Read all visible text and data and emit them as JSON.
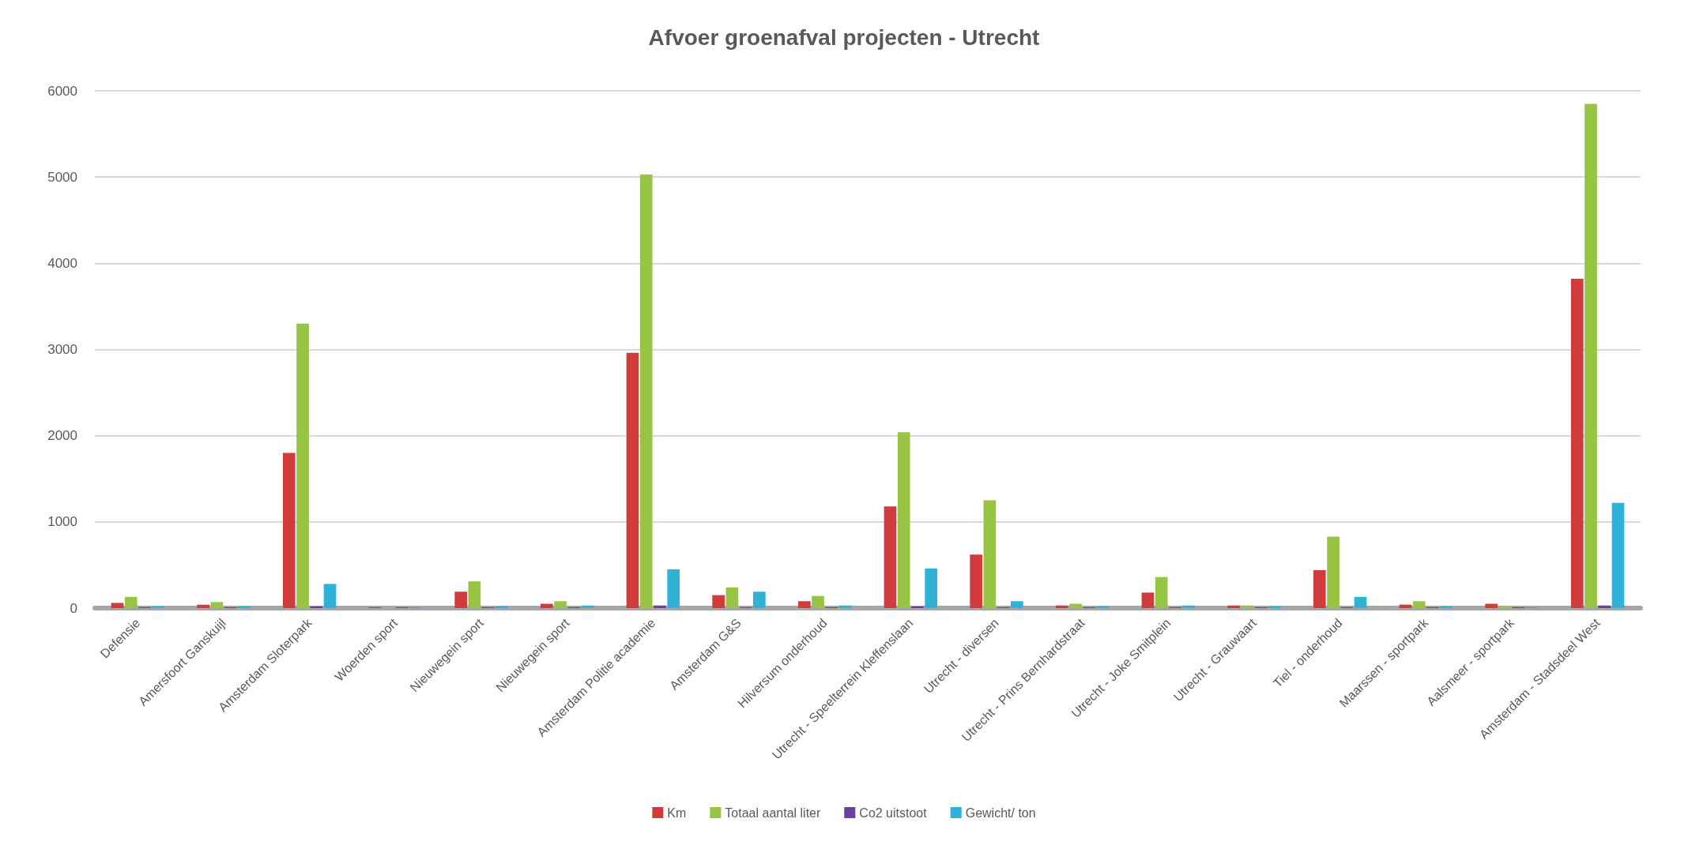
{
  "chart_data": {
    "type": "bar",
    "title": "Afvoer groenafval projecten - Utrecht",
    "categories": [
      "Defensie",
      "Amersfoort Ganskuijl",
      "Amsterdam Sloterpark",
      "Woerden sport",
      "Nieuwegein sport",
      "Nieuwegein sport",
      "Amsterdam Politie academie",
      "Amsterdam G&S",
      "Hilversum onderhoud",
      "Utrecht - Speelterrein Kleffenslaan",
      "Utrecht - diversen",
      "Utrecht - Prins Bernhardstraat",
      "Utrecht - Joke Smitplein",
      "Utrecht - Grauwaart",
      "Tiel - onderhoud",
      "Maarssen - sportpark",
      "Aalsmeer - sportpark",
      "Amsterdam - Stadsdeel West"
    ],
    "series": [
      {
        "name": "Km",
        "color": "#d13b3b",
        "values": [
          60,
          40,
          1800,
          10,
          190,
          50,
          2960,
          150,
          80,
          1180,
          620,
          30,
          180,
          30,
          440,
          40,
          50,
          3820
        ]
      },
      {
        "name": "Totaal aantal liter",
        "color": "#98c444",
        "values": [
          130,
          70,
          3300,
          10,
          310,
          80,
          5030,
          240,
          140,
          2040,
          1250,
          50,
          360,
          30,
          830,
          80,
          20,
          5850
        ]
      },
      {
        "name": "Co2 uitstoot",
        "color": "#6a3fa0",
        "values": [
          10,
          10,
          20,
          10,
          10,
          10,
          30,
          10,
          10,
          20,
          10,
          10,
          10,
          10,
          10,
          10,
          10,
          30
        ]
      },
      {
        "name": "Gewicht/ ton",
        "color": "#2fb2d6",
        "values": [
          20,
          20,
          280,
          10,
          20,
          30,
          450,
          190,
          30,
          460,
          80,
          20,
          30,
          20,
          130,
          20,
          10,
          1220
        ]
      }
    ],
    "ylim": [
      0,
      6000
    ],
    "yticks": [
      0,
      1000,
      2000,
      3000,
      4000,
      5000,
      6000
    ],
    "grid": "y",
    "legend": "bottom"
  }
}
